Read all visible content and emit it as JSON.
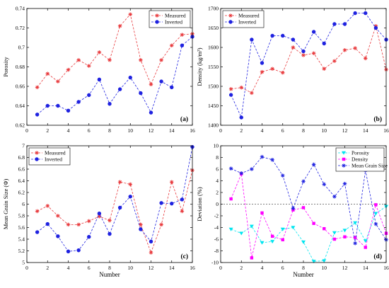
{
  "chart_data": [
    {
      "type": "line",
      "panel_label": "(a)",
      "xlabel": "",
      "ylabel": "Porosity",
      "xlim": [
        0,
        16
      ],
      "ylim": [
        0.62,
        0.74
      ],
      "xticks": [
        0,
        2,
        4,
        6,
        8,
        10,
        12,
        14,
        16
      ],
      "yticks": [
        0.62,
        0.64,
        0.66,
        0.68,
        0.7,
        0.72,
        0.74
      ],
      "ytick_labels": [
        "0.62",
        "0.64",
        "0.66",
        "0.68",
        "0.7",
        "0.72",
        "0.74"
      ],
      "legend_position": "top-right",
      "x": [
        1,
        2,
        3,
        4,
        5,
        6,
        7,
        8,
        9,
        10,
        11,
        12,
        13,
        14,
        15,
        16
      ],
      "series": [
        {
          "name": "Measured",
          "color": "#e8383b",
          "marker": "star",
          "dash": "3,2",
          "values": [
            0.659,
            0.673,
            0.665,
            0.677,
            0.687,
            0.681,
            0.695,
            0.687,
            0.722,
            0.734,
            0.687,
            0.662,
            0.687,
            0.702,
            0.713,
            0.714
          ]
        },
        {
          "name": "Inverted",
          "color": "#1f22e0",
          "marker": "circle",
          "dash": "3,2",
          "values": [
            0.631,
            0.64,
            0.64,
            0.635,
            0.644,
            0.651,
            0.667,
            0.642,
            0.657,
            0.669,
            0.653,
            0.633,
            0.665,
            0.659,
            0.702,
            0.711
          ]
        }
      ]
    },
    {
      "type": "line",
      "panel_label": "(b)",
      "xlabel": "",
      "ylabel": "Density (kg/m³)",
      "xlim": [
        0,
        16
      ],
      "ylim": [
        1400,
        1700
      ],
      "xticks": [
        0,
        2,
        4,
        6,
        8,
        10,
        12,
        14,
        16
      ],
      "yticks": [
        1400,
        1450,
        1500,
        1550,
        1600,
        1650,
        1700
      ],
      "ytick_labels": [
        "1400",
        "1450",
        "1500",
        "1550",
        "1600",
        "1650",
        "1700"
      ],
      "legend_position": "top-left",
      "x": [
        1,
        2,
        3,
        4,
        5,
        6,
        7,
        8,
        9,
        10,
        11,
        12,
        13,
        14,
        15,
        16
      ],
      "series": [
        {
          "name": "Measured",
          "color": "#e8383b",
          "marker": "star",
          "dash": "3,2",
          "values": [
            1493,
            1497,
            1483,
            1537,
            1545,
            1535,
            1600,
            1580,
            1585,
            1545,
            1565,
            1593,
            1598,
            1572,
            1655,
            1543
          ]
        },
        {
          "name": "Inverted",
          "color": "#1f22e0",
          "marker": "circle",
          "dash": "3,2",
          "values": [
            1478,
            1420,
            1620,
            1560,
            1630,
            1630,
            1620,
            1590,
            1640,
            1610,
            1660,
            1660,
            1688,
            1688,
            1650,
            1620
          ]
        }
      ]
    },
    {
      "type": "line",
      "panel_label": "(c)",
      "xlabel": "Number",
      "ylabel": "Mean Grain Size (Φ)",
      "xlim": [
        0,
        16
      ],
      "ylim": [
        5,
        7
      ],
      "xticks": [
        0,
        2,
        4,
        6,
        8,
        10,
        12,
        14,
        16
      ],
      "yticks": [
        5,
        5.2,
        5.4,
        5.6,
        5.8,
        6,
        6.2,
        6.4,
        6.6,
        6.8,
        7
      ],
      "ytick_labels": [
        "5",
        "5.2",
        "5.4",
        "5.6",
        "5.8",
        "6",
        "6.2",
        "6.4",
        "6.6",
        "6.8",
        "7"
      ],
      "legend_position": "top-left",
      "x": [
        1,
        2,
        3,
        4,
        5,
        6,
        7,
        8,
        9,
        10,
        11,
        12,
        13,
        14,
        15,
        16
      ],
      "series": [
        {
          "name": "Measured",
          "color": "#e8383b",
          "marker": "star",
          "dash": "3,2",
          "values": [
            5.88,
            5.97,
            5.8,
            5.65,
            5.65,
            5.71,
            5.79,
            5.72,
            6.38,
            6.34,
            5.65,
            5.17,
            5.65,
            6.38,
            5.88,
            6.58
          ]
        },
        {
          "name": "Inverted",
          "color": "#1f22e0",
          "marker": "circle",
          "dash": "3,2",
          "values": [
            5.52,
            5.66,
            5.45,
            5.19,
            5.21,
            5.44,
            5.84,
            5.49,
            5.94,
            6.13,
            5.57,
            5.36,
            6.02,
            6.01,
            6.08,
            6.98
          ]
        }
      ]
    },
    {
      "type": "line",
      "panel_label": "(d)",
      "xlabel": "Number",
      "ylabel": "Deviation (%)",
      "xlim": [
        0,
        16
      ],
      "ylim": [
        -10,
        10
      ],
      "xticks": [
        0,
        2,
        4,
        6,
        8,
        10,
        12,
        14,
        16
      ],
      "yticks": [
        -10,
        -8,
        -6,
        -4,
        -2,
        0,
        2,
        4,
        6,
        8,
        10
      ],
      "ytick_labels": [
        "-10",
        "-8",
        "-6",
        "-4",
        "-2",
        "0",
        "2",
        "4",
        "6",
        "8",
        "10"
      ],
      "legend_position": "top-right",
      "zero_line": true,
      "x": [
        1,
        2,
        3,
        4,
        5,
        6,
        7,
        8,
        9,
        10,
        11,
        12,
        13,
        14,
        15,
        16
      ],
      "series": [
        {
          "name": "Porosity",
          "color": "#00e5f0",
          "marker": "triangle-down",
          "dash": "3,2",
          "values": [
            -4.3,
            -5,
            -3.8,
            -6.6,
            -6.4,
            -4.3,
            -4,
            -6.5,
            -9.8,
            -9.7,
            -4.9,
            -4.5,
            -3.2,
            -6.3,
            -1.6,
            -0.4
          ]
        },
        {
          "name": "Density",
          "color": "#ff00ff",
          "marker": "square",
          "dash": "3,2",
          "values": [
            0.9,
            5.2,
            -9.2,
            -1.5,
            -5.5,
            -6.1,
            -1,
            -0.6,
            -3.3,
            -4.2,
            -6,
            -5.6,
            -5.7,
            -7.4,
            -0.1,
            -5
          ]
        },
        {
          "name": "Mean Grain Size",
          "color": "#1f22e0",
          "marker": "star",
          "dash": "3,2",
          "values": [
            6.1,
            5.3,
            6,
            8.1,
            7.6,
            4.9,
            -0.7,
            3.9,
            6.8,
            3.4,
            1.3,
            3.5,
            -6.7,
            5.8,
            -3.4,
            -6.1
          ]
        }
      ]
    }
  ]
}
